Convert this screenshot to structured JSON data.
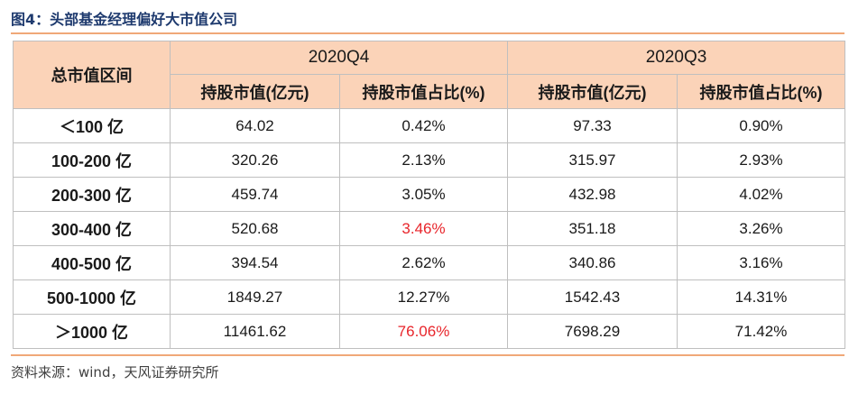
{
  "title": "图4：头部基金经理偏好大市值公司",
  "table": {
    "corner_header": "总市值区间",
    "groups": [
      "2020Q4",
      "2020Q3"
    ],
    "subheaders": [
      "持股市值(亿元)",
      "持股市值占比(%)",
      "持股市值(亿元)",
      "持股市值占比(%)"
    ],
    "rows": [
      {
        "label": "＜100 亿",
        "q4_value": "64.02",
        "q4_pct": "0.42%",
        "q3_value": "97.33",
        "q3_pct": "0.90%"
      },
      {
        "label": "100-200 亿",
        "q4_value": "320.26",
        "q4_pct": "2.13%",
        "q3_value": "315.97",
        "q3_pct": "2.93%"
      },
      {
        "label": "200-300 亿",
        "q4_value": "459.74",
        "q4_pct": "3.05%",
        "q3_value": "432.98",
        "q3_pct": "4.02%"
      },
      {
        "label": "300-400 亿",
        "q4_value": "520.68",
        "q4_pct": "3.46%",
        "q3_value": "351.18",
        "q3_pct": "3.26%"
      },
      {
        "label": "400-500 亿",
        "q4_value": "394.54",
        "q4_pct": "2.62%",
        "q3_value": "340.86",
        "q3_pct": "3.16%"
      },
      {
        "label": "500-1000 亿",
        "q4_value": "1849.27",
        "q4_pct": "12.27%",
        "q3_value": "1542.43",
        "q3_pct": "14.31%"
      },
      {
        "label": "＞1000 亿",
        "q4_value": "11461.62",
        "q4_pct": "76.06%",
        "q3_value": "7698.29",
        "q3_pct": "71.42%"
      }
    ],
    "highlight_color": "#e8252b"
  },
  "source": "资料来源：wind，天风证券研究所"
}
